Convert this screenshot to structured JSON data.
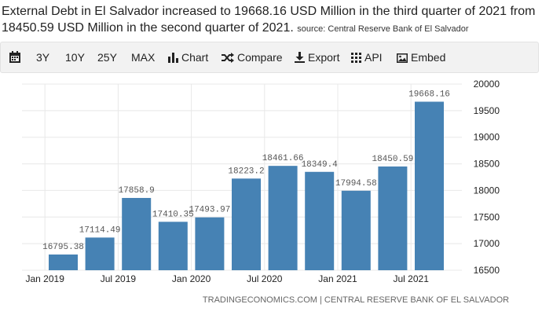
{
  "headline": {
    "text": "External Debt in El Salvador increased to 19668.16 USD Million in the third quarter of 2021 from 18450.59 USD Million in the second quarter of 2021.",
    "source": "source: Central Reserve Bank of El Salvador"
  },
  "toolbar": {
    "calendar_icon": "calendar-icon",
    "range_3y": "3Y",
    "range_10y": "10Y",
    "range_25y": "25Y",
    "range_max": "MAX",
    "chart": "Chart",
    "compare": "Compare",
    "export": "Export",
    "api": "API",
    "embed": "Embed"
  },
  "colors": {
    "bar": "#4682b4",
    "grid": "#e8e8e8",
    "text": "#333333",
    "toolbar_bg": "#f2f2f2"
  },
  "chart_data": {
    "type": "bar",
    "categories": [
      "Jan 2019",
      "Apr 2019",
      "Jul 2019",
      "Oct 2019",
      "Jan 2020",
      "Apr 2020",
      "Jul 2020",
      "Oct 2020",
      "Jan 2021",
      "Apr 2021",
      "Jul 2021"
    ],
    "values": [
      16795.38,
      17114.49,
      17858.9,
      17410.35,
      17493.97,
      18223.2,
      18461.66,
      18349.4,
      17994.58,
      18450.59,
      19668.16
    ],
    "value_labels": [
      "16795.38",
      "17114.49",
      "17858.9",
      "17410.35",
      "17493.97",
      "18223.2",
      "18461.66",
      "18349.4",
      "17994.58",
      "18450.59",
      "19668.16"
    ],
    "x_tick_labels": [
      "Jan 2019",
      "Jul 2019",
      "Jan 2020",
      "Jul 2020",
      "Jan 2021",
      "Jul 2021"
    ],
    "y_ticks": [
      16500,
      17000,
      17500,
      18000,
      18500,
      19000,
      19500,
      20000
    ],
    "ylim": [
      16500,
      20000
    ],
    "y_axis_side": "right",
    "grid": true,
    "credit": "TRADINGECONOMICS.COM | CENTRAL RESERVE BANK OF EL SALVADOR"
  }
}
